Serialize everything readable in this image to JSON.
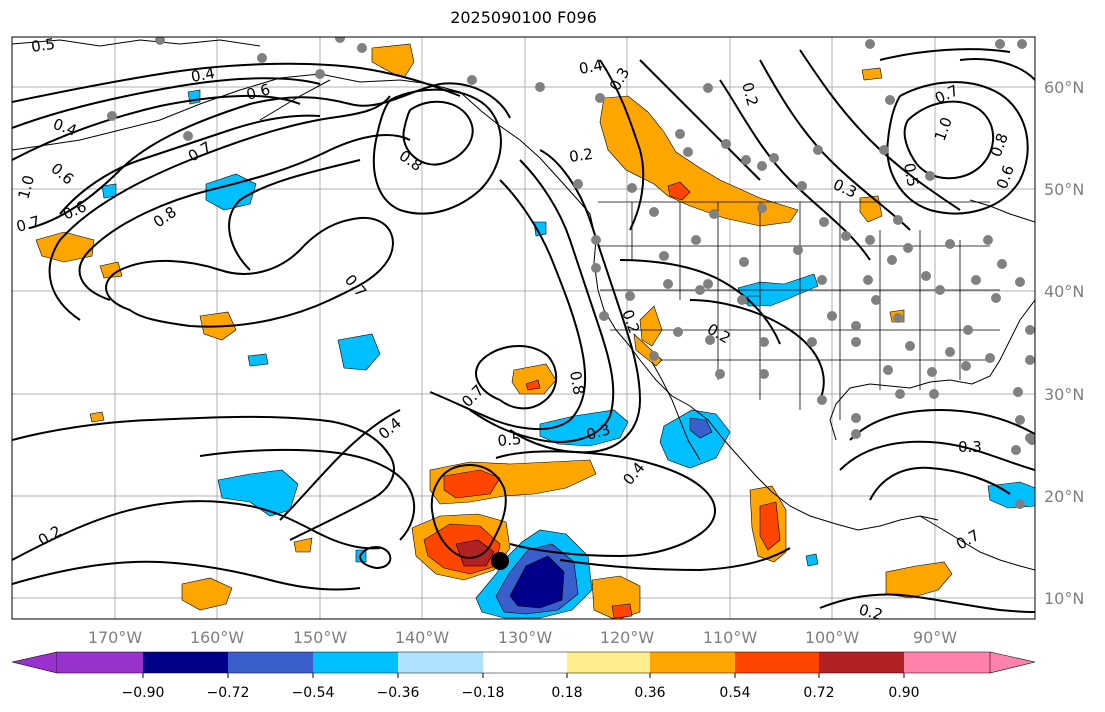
{
  "title": "2025090100 F096",
  "lat_labels": [
    "60°N",
    "50°N",
    "40°N",
    "30°N",
    "20°N",
    "10°N"
  ],
  "lon_labels": [
    "170°W",
    "160°W",
    "150°W",
    "140°W",
    "130°W",
    "120°W",
    "110°W",
    "100°W",
    "90°W"
  ],
  "colorbar": {
    "ticks": [
      "−0.90",
      "−0.72",
      "−0.54",
      "−0.36",
      "−0.18",
      "0.18",
      "0.36",
      "0.54",
      "0.72",
      "0.90"
    ],
    "colors": [
      "#9932cc",
      "#00008b",
      "#3a5fcd",
      "#00bfff",
      "#b0e2ff",
      "#ffffff",
      "#ffec8b",
      "#ffa500",
      "#ff4500",
      "#b22222",
      "#ff82ab"
    ]
  },
  "contour_labels": [
    {
      "text": "0.5"
    },
    {
      "text": "0.4"
    },
    {
      "text": "0.6"
    },
    {
      "text": "0.4"
    },
    {
      "text": "0.7"
    },
    {
      "text": "0.6"
    },
    {
      "text": "1.0"
    },
    {
      "text": "0.7"
    },
    {
      "text": "0.6"
    },
    {
      "text": "0.8"
    },
    {
      "text": "0.8"
    },
    {
      "text": "0.7"
    },
    {
      "text": "0.4"
    },
    {
      "text": "0.3"
    },
    {
      "text": "0.2"
    },
    {
      "text": "0.2"
    },
    {
      "text": "0.3"
    },
    {
      "text": "0.5"
    },
    {
      "text": "1.0"
    },
    {
      "text": "0.7"
    },
    {
      "text": "0.8"
    },
    {
      "text": "0.6"
    },
    {
      "text": "0.2"
    },
    {
      "text": "0.2"
    },
    {
      "text": "0.7"
    },
    {
      "text": "0.8"
    },
    {
      "text": "0.4"
    },
    {
      "text": "0.5"
    },
    {
      "text": "0.3"
    },
    {
      "text": "0.4"
    },
    {
      "text": "0.2"
    },
    {
      "text": "0.3"
    },
    {
      "text": "0.2"
    },
    {
      "text": "0.7"
    }
  ],
  "storm_marker": "tropical-cyclone-position"
}
